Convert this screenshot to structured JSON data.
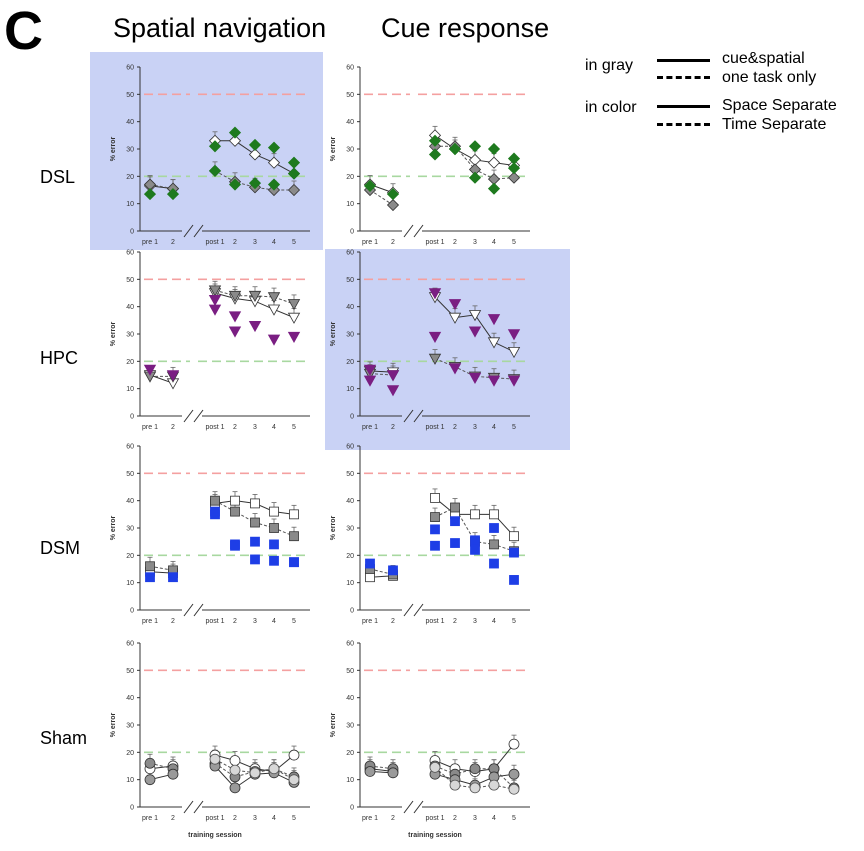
{
  "panel_letter": "C",
  "columns": [
    "Spatial navigation",
    "Cue response"
  ],
  "rows": [
    "DSL",
    "HPC",
    "DSM",
    "Sham"
  ],
  "legend": {
    "gray_label": "in gray",
    "gray_solid": "cue&spatial",
    "gray_dashed": "one task only",
    "color_label": "in color",
    "color_solid": "Space Separate",
    "color_dashed": "Time Separate"
  },
  "colors": {
    "highlight": "#c9d2f5",
    "red_line": "#f4a0a0",
    "green_line": "#a8d8a0",
    "DSL": "#1e7a1e",
    "HPC": "#7a1e82",
    "DSM": "#1e3ee6",
    "Sham": "#ffffff"
  },
  "axis": {
    "ylabel": "% error",
    "yticks": [
      "0",
      "10",
      "20",
      "30",
      "40",
      "50",
      "60"
    ],
    "xticks": [
      "pre 1",
      "2",
      "post 1",
      "2",
      "3",
      "4",
      "5"
    ],
    "xlabel": "training session"
  },
  "chart_data": [
    {
      "type": "line",
      "row": "DSL",
      "column": "Spatial navigation",
      "highlighted": true,
      "marker": "diamond",
      "x": [
        "pre 1",
        "2",
        "post 1",
        "2",
        "3",
        "4",
        "5"
      ],
      "ylim": [
        0,
        60
      ],
      "series": [
        {
          "values": [
            16.5,
            15.5,
            33,
            33,
            28,
            25,
            21
          ]
        },
        {
          "values": [
            17,
            15.5,
            22,
            18,
            16,
            15,
            15
          ]
        },
        {
          "values": [
            13.5,
            13.5,
            31,
            36,
            31.5,
            30.5,
            25
          ]
        },
        {
          "values": [
            null,
            null,
            22,
            17,
            17.5,
            17,
            21
          ]
        }
      ]
    },
    {
      "type": "line",
      "row": "DSL",
      "column": "Cue response",
      "highlighted": false,
      "marker": "diamond",
      "x": [
        "pre 1",
        "2",
        "post 1",
        "2",
        "3",
        "4",
        "5"
      ],
      "ylim": [
        0,
        60
      ],
      "series": [
        {
          "values": [
            17,
            14,
            35,
            30,
            26,
            25,
            24
          ]
        },
        {
          "values": [
            15,
            9.5,
            31,
            31,
            22.5,
            19,
            19.5
          ]
        },
        {
          "values": [
            16.5,
            13.5,
            28,
            30,
            31,
            30,
            26.5
          ]
        },
        {
          "values": [
            null,
            null,
            33,
            30,
            19.5,
            15.5,
            23
          ]
        }
      ]
    },
    {
      "type": "line",
      "row": "HPC",
      "column": "Spatial navigation",
      "highlighted": false,
      "marker": "triangle-down",
      "x": [
        "pre 1",
        "2",
        "post 1",
        "2",
        "3",
        "4",
        "5"
      ],
      "ylim": [
        0,
        60
      ],
      "series": [
        {
          "values": [
            15,
            12,
            45,
            43,
            42,
            39,
            36
          ]
        },
        {
          "values": [
            14.5,
            14.5,
            46,
            44,
            44,
            43.5,
            41
          ]
        },
        {
          "values": [
            17,
            15,
            39,
            31,
            33,
            28,
            29
          ]
        },
        {
          "values": [
            null,
            null,
            42.5,
            36.5,
            null,
            null,
            null
          ]
        }
      ]
    },
    {
      "type": "line",
      "row": "HPC",
      "column": "Cue response",
      "highlighted": true,
      "marker": "triangle-down",
      "x": [
        "pre 1",
        "2",
        "post 1",
        "2",
        "3",
        "4",
        "5"
      ],
      "ylim": [
        0,
        60
      ],
      "series": [
        {
          "values": [
            16.5,
            16,
            43.5,
            36,
            37,
            27,
            23.5
          ]
        },
        {
          "values": [
            15.5,
            15,
            21,
            18,
            14.5,
            14,
            13.5
          ]
        },
        {
          "values": [
            13,
            9.5,
            45,
            41,
            31,
            35.5,
            30
          ]
        },
        {
          "values": [
            17,
            15,
            29,
            17.5,
            14,
            13,
            13
          ]
        }
      ]
    },
    {
      "type": "line",
      "row": "DSM",
      "column": "Spatial navigation",
      "highlighted": false,
      "marker": "square",
      "x": [
        "pre 1",
        "2",
        "post 1",
        "2",
        "3",
        "4",
        "5"
      ],
      "ylim": [
        0,
        60
      ],
      "series": [
        {
          "values": [
            14,
            13.5,
            39,
            40,
            39,
            36,
            35
          ]
        },
        {
          "values": [
            16,
            14.5,
            40,
            36,
            32,
            30,
            27
          ]
        },
        {
          "values": [
            12,
            12,
            35,
            24,
            25,
            24,
            17.5
          ]
        },
        {
          "values": [
            null,
            null,
            36,
            23.5,
            18.5,
            18,
            17.5
          ]
        }
      ]
    },
    {
      "type": "line",
      "row": "DSM",
      "column": "Cue response",
      "highlighted": false,
      "marker": "square",
      "x": [
        "pre 1",
        "2",
        "post 1",
        "2",
        "3",
        "4",
        "5"
      ],
      "ylim": [
        0,
        60
      ],
      "series": [
        {
          "values": [
            12,
            12.5,
            41,
            35,
            35,
            35,
            27
          ]
        },
        {
          "values": [
            15,
            13,
            34,
            37.5,
            25,
            24,
            21.5
          ]
        },
        {
          "values": [
            17,
            14.5,
            29.5,
            32.5,
            25.5,
            30,
            11
          ]
        },
        {
          "values": [
            null,
            null,
            23.5,
            24.5,
            22,
            17,
            21
          ]
        }
      ]
    },
    {
      "type": "line",
      "row": "Sham",
      "column": "Spatial navigation",
      "highlighted": false,
      "marker": "circle",
      "x": [
        "pre 1",
        "2",
        "post 1",
        "2",
        "3",
        "4",
        "5"
      ],
      "ylim": [
        0,
        60
      ],
      "series": [
        {
          "values": [
            14,
            15,
            19,
            17,
            14,
            13,
            19
          ]
        },
        {
          "values": [
            16,
            14,
            16,
            11,
            13,
            14,
            11
          ]
        },
        {
          "values": [
            10,
            12,
            15,
            7,
            12,
            12.5,
            9
          ]
        },
        {
          "values": [
            null,
            null,
            17.5,
            13.5,
            12.5,
            14,
            10
          ]
        }
      ]
    },
    {
      "type": "line",
      "row": "Sham",
      "column": "Cue response",
      "highlighted": false,
      "marker": "circle",
      "x": [
        "pre 1",
        "2",
        "post 1",
        "2",
        "3",
        "4",
        "5"
      ],
      "ylim": [
        0,
        60
      ],
      "series": [
        {
          "values": [
            14,
            13,
            17,
            14,
            13,
            14,
            23
          ]
        },
        {
          "values": [
            15,
            14,
            15,
            12,
            14,
            14,
            7
          ]
        },
        {
          "values": [
            13,
            12.5,
            12,
            10,
            8,
            11,
            12
          ]
        },
        {
          "values": [
            null,
            null,
            14.5,
            8,
            7,
            8,
            6.5
          ]
        }
      ]
    }
  ]
}
